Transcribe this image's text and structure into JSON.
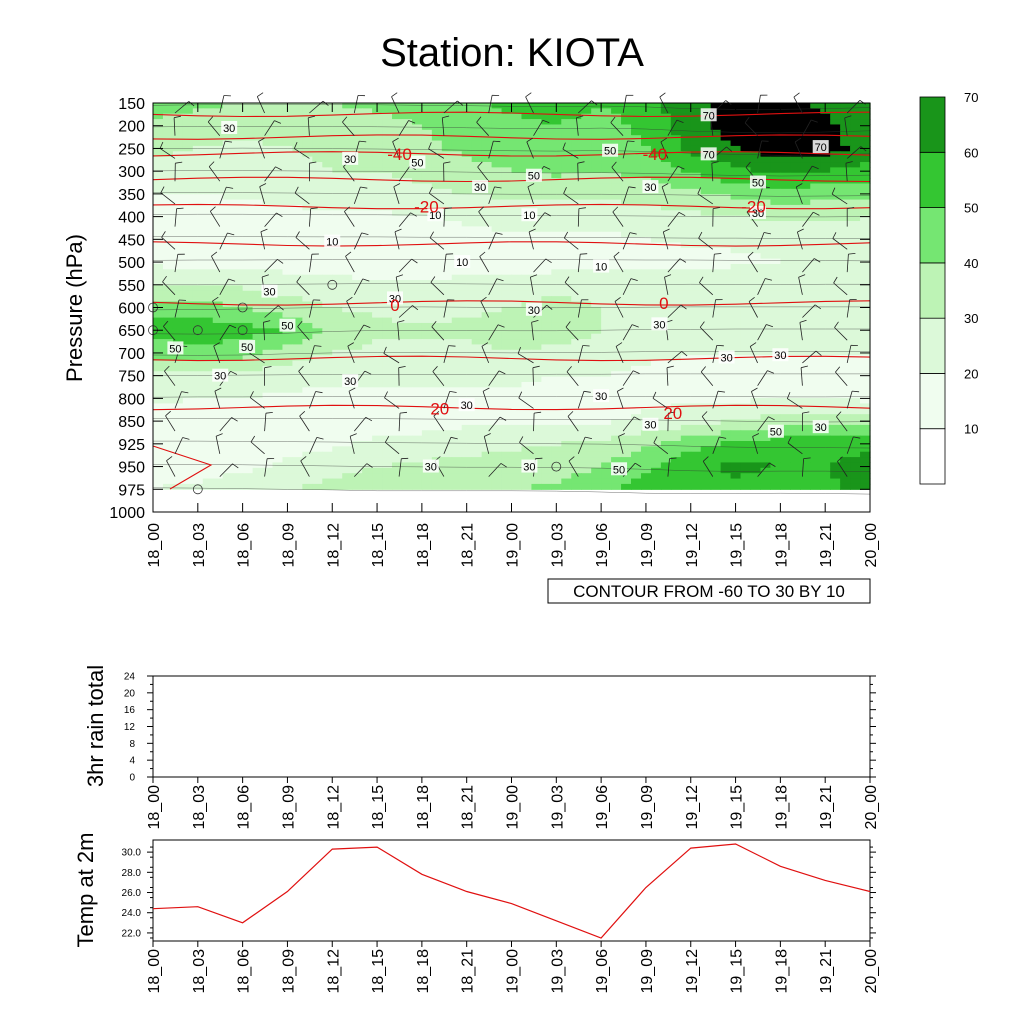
{
  "title": "Station: KIOTA",
  "time_labels": [
    "18_00",
    "18_03",
    "18_06",
    "18_09",
    "18_12",
    "18_15",
    "18_18",
    "18_21",
    "19_00",
    "19_03",
    "19_06",
    "19_09",
    "19_12",
    "19_15",
    "19_18",
    "19_21",
    "20_00"
  ],
  "colors": {
    "levels": [
      "#ffffff",
      "#f0fdef",
      "#dcf9d9",
      "#bdf3b5",
      "#75e672",
      "#34c632",
      "#19951a"
    ],
    "temp_line": "#e01010",
    "contour": "#333333"
  },
  "chart_data": [
    {
      "type": "heatmap",
      "name": "wind speed cross-section with temperature contours",
      "ylabel": "Pressure (hPa)",
      "y_levels": [
        150,
        200,
        250,
        300,
        350,
        400,
        450,
        500,
        550,
        600,
        650,
        700,
        750,
        800,
        850,
        925,
        950,
        975,
        1000
      ],
      "ylim": [
        1000,
        150
      ],
      "x": [
        "18_00",
        "18_03",
        "18_06",
        "18_09",
        "18_12",
        "18_15",
        "18_18",
        "18_21",
        "19_00",
        "19_03",
        "19_06",
        "19_09",
        "19_12",
        "19_15",
        "19_18",
        "19_21",
        "20_00"
      ],
      "rows_levels": [
        150,
        200,
        250,
        300,
        350,
        400,
        450,
        500,
        550,
        600,
        650,
        700,
        750,
        800,
        850,
        925,
        950,
        975
      ],
      "values": [
        [
          45,
          42,
          40,
          40,
          40,
          42,
          45,
          48,
          52,
          55,
          50,
          56,
          68,
          72,
          72,
          68,
          60
        ],
        [
          38,
          35,
          34,
          34,
          35,
          37,
          40,
          44,
          48,
          50,
          46,
          52,
          66,
          74,
          78,
          72,
          64
        ],
        [
          32,
          30,
          28,
          30,
          32,
          34,
          38,
          42,
          46,
          48,
          44,
          50,
          62,
          70,
          76,
          74,
          66
        ],
        [
          28,
          26,
          26,
          28,
          30,
          30,
          32,
          36,
          40,
          42,
          40,
          44,
          52,
          58,
          62,
          60,
          56
        ],
        [
          20,
          20,
          22,
          24,
          26,
          26,
          28,
          30,
          32,
          32,
          32,
          34,
          38,
          42,
          46,
          44,
          42
        ],
        [
          15,
          14,
          14,
          16,
          18,
          18,
          20,
          22,
          24,
          24,
          24,
          26,
          28,
          30,
          32,
          32,
          30
        ],
        [
          12,
          12,
          12,
          13,
          14,
          14,
          16,
          16,
          18,
          18,
          18,
          20,
          22,
          22,
          24,
          24,
          24
        ],
        [
          18,
          16,
          16,
          15,
          14,
          12,
          12,
          14,
          14,
          14,
          15,
          16,
          16,
          18,
          20,
          20,
          22
        ],
        [
          30,
          30,
          28,
          26,
          24,
          22,
          22,
          24,
          26,
          28,
          28,
          28,
          26,
          28,
          28,
          26,
          26
        ],
        [
          46,
          44,
          40,
          34,
          30,
          28,
          26,
          28,
          30,
          32,
          30,
          28,
          26,
          26,
          26,
          26,
          26
        ],
        [
          54,
          56,
          54,
          50,
          38,
          32,
          32,
          32,
          34,
          34,
          30,
          26,
          24,
          22,
          22,
          22,
          22
        ],
        [
          44,
          46,
          44,
          36,
          30,
          28,
          28,
          28,
          30,
          28,
          26,
          22,
          20,
          20,
          20,
          20,
          20
        ],
        [
          28,
          28,
          26,
          24,
          22,
          22,
          22,
          22,
          22,
          20,
          20,
          18,
          18,
          18,
          18,
          18,
          18
        ],
        [
          22,
          20,
          20,
          18,
          18,
          18,
          18,
          18,
          18,
          16,
          16,
          18,
          18,
          18,
          20,
          20,
          18
        ],
        [
          14,
          14,
          14,
          14,
          14,
          14,
          16,
          18,
          18,
          18,
          18,
          22,
          26,
          30,
          34,
          36,
          34
        ],
        [
          12,
          12,
          14,
          16,
          18,
          22,
          24,
          26,
          28,
          30,
          32,
          38,
          46,
          52,
          56,
          56,
          58
        ],
        [
          16,
          16,
          18,
          22,
          26,
          30,
          32,
          34,
          34,
          36,
          40,
          48,
          58,
          62,
          60,
          60,
          64
        ],
        [
          20,
          22,
          26,
          30,
          34,
          40,
          40,
          40,
          40,
          42,
          48,
          56,
          58,
          58,
          56,
          58,
          62
        ]
      ],
      "colorbar": {
        "ticks": [
          "10",
          "20",
          "30",
          "40",
          "50",
          "60",
          "70"
        ],
        "bounds": [
          10,
          20,
          30,
          40,
          50,
          60,
          70
        ]
      },
      "temperature_contours": [
        {
          "value": -50,
          "pressure": 175
        },
        {
          "value": -50,
          "pressure": 225
        },
        {
          "value": -40,
          "pressure": 262
        },
        {
          "value": -30,
          "pressure": 318
        },
        {
          "value": -20,
          "pressure": 378
        },
        {
          "value": -10,
          "pressure": 460
        },
        {
          "value": 0,
          "pressure": 590
        },
        {
          "value": 10,
          "pressure": 712
        },
        {
          "value": 20,
          "pressure": 820
        }
      ],
      "temperature_labels": [
        {
          "text": "-40",
          "x": 5.5,
          "pressure": 262
        },
        {
          "text": "-40",
          "x": 11.2,
          "pressure": 262
        },
        {
          "text": "-20",
          "x": 6.1,
          "pressure": 378
        },
        {
          "text": "-20",
          "x": 13.4,
          "pressure": 378
        },
        {
          "text": "0",
          "x": 5.4,
          "pressure": 595
        },
        {
          "text": "0",
          "x": 11.4,
          "pressure": 590
        },
        {
          "text": "20",
          "x": 6.4,
          "pressure": 822
        },
        {
          "text": "20",
          "x": 11.6,
          "pressure": 832
        }
      ],
      "speed_labels": [
        {
          "text": "30",
          "x": 1.7,
          "pressure": 205
        },
        {
          "text": "30",
          "x": 4.4,
          "pressure": 273
        },
        {
          "text": "50",
          "x": 5.9,
          "pressure": 281
        },
        {
          "text": "30",
          "x": 7.3,
          "pressure": 335
        },
        {
          "text": "50",
          "x": 8.5,
          "pressure": 310
        },
        {
          "text": "50",
          "x": 10.2,
          "pressure": 255
        },
        {
          "text": "30",
          "x": 11.1,
          "pressure": 335
        },
        {
          "text": "70",
          "x": 12.4,
          "pressure": 177
        },
        {
          "text": "70",
          "x": 12.4,
          "pressure": 263
        },
        {
          "text": "70",
          "x": 14.9,
          "pressure": 247
        },
        {
          "text": "50",
          "x": 13.5,
          "pressure": 325
        },
        {
          "text": "30",
          "x": 13.5,
          "pressure": 392
        },
        {
          "text": "10",
          "x": 6.3,
          "pressure": 397
        },
        {
          "text": "10",
          "x": 8.4,
          "pressure": 397
        },
        {
          "text": "10",
          "x": 4.0,
          "pressure": 455
        },
        {
          "text": "10",
          "x": 6.9,
          "pressure": 500
        },
        {
          "text": "10",
          "x": 10.0,
          "pressure": 510
        },
        {
          "text": "30",
          "x": 2.6,
          "pressure": 565
        },
        {
          "text": "30",
          "x": 5.4,
          "pressure": 580
        },
        {
          "text": "30",
          "x": 8.5,
          "pressure": 605
        },
        {
          "text": "30",
          "x": 11.3,
          "pressure": 637
        },
        {
          "text": "50",
          "x": 3.0,
          "pressure": 640
        },
        {
          "text": "50",
          "x": 0.5,
          "pressure": 690
        },
        {
          "text": "50",
          "x": 2.1,
          "pressure": 687
        },
        {
          "text": "30",
          "x": 1.5,
          "pressure": 750
        },
        {
          "text": "30",
          "x": 4.4,
          "pressure": 762
        },
        {
          "text": "30",
          "x": 7.0,
          "pressure": 815
        },
        {
          "text": "30",
          "x": 10.0,
          "pressure": 795
        },
        {
          "text": "30",
          "x": 12.8,
          "pressure": 710
        },
        {
          "text": "30",
          "x": 14.0,
          "pressure": 705
        },
        {
          "text": "30",
          "x": 11.1,
          "pressure": 862
        },
        {
          "text": "30",
          "x": 14.9,
          "pressure": 870
        },
        {
          "text": "50",
          "x": 13.9,
          "pressure": 885
        },
        {
          "text": "30",
          "x": 6.2,
          "pressure": 950
        },
        {
          "text": "30",
          "x": 8.4,
          "pressure": 950
        },
        {
          "text": "50",
          "x": 10.4,
          "pressure": 953
        }
      ],
      "info_label": "CONTOUR FROM -60 TO 30 BY 10"
    },
    {
      "type": "bar",
      "name": "3hr rain",
      "ylabel": "3hr rain total",
      "ylim": [
        0,
        24
      ],
      "yticks": [
        "0",
        "4",
        "8",
        "12",
        "16",
        "20",
        "24"
      ],
      "x": [
        "18_00",
        "18_03",
        "18_06",
        "18_09",
        "18_12",
        "18_15",
        "18_18",
        "18_21",
        "19_00",
        "19_03",
        "19_06",
        "19_09",
        "19_12",
        "19_15",
        "19_18",
        "19_21",
        "20_00"
      ],
      "values": [
        0,
        0,
        0,
        0,
        0,
        0,
        0,
        0,
        0,
        0,
        0,
        0,
        0,
        0,
        0,
        0,
        0
      ]
    },
    {
      "type": "line",
      "name": "2m temperature",
      "ylabel": "Temp at 2m",
      "ylim": [
        21.2,
        31.2
      ],
      "yticks": [
        "22.0",
        "24.0",
        "26.0",
        "28.0",
        "30.0"
      ],
      "x": [
        "18_00",
        "18_03",
        "18_06",
        "18_09",
        "18_12",
        "18_15",
        "18_18",
        "18_21",
        "19_00",
        "19_03",
        "19_06",
        "19_09",
        "19_12",
        "19_15",
        "19_18",
        "19_21",
        "20_00"
      ],
      "values": [
        24.4,
        24.6,
        23.0,
        26.1,
        30.3,
        30.5,
        27.8,
        26.1,
        24.9,
        23.2,
        21.5,
        26.5,
        30.4,
        30.8,
        28.6,
        27.2,
        26.1
      ]
    }
  ]
}
